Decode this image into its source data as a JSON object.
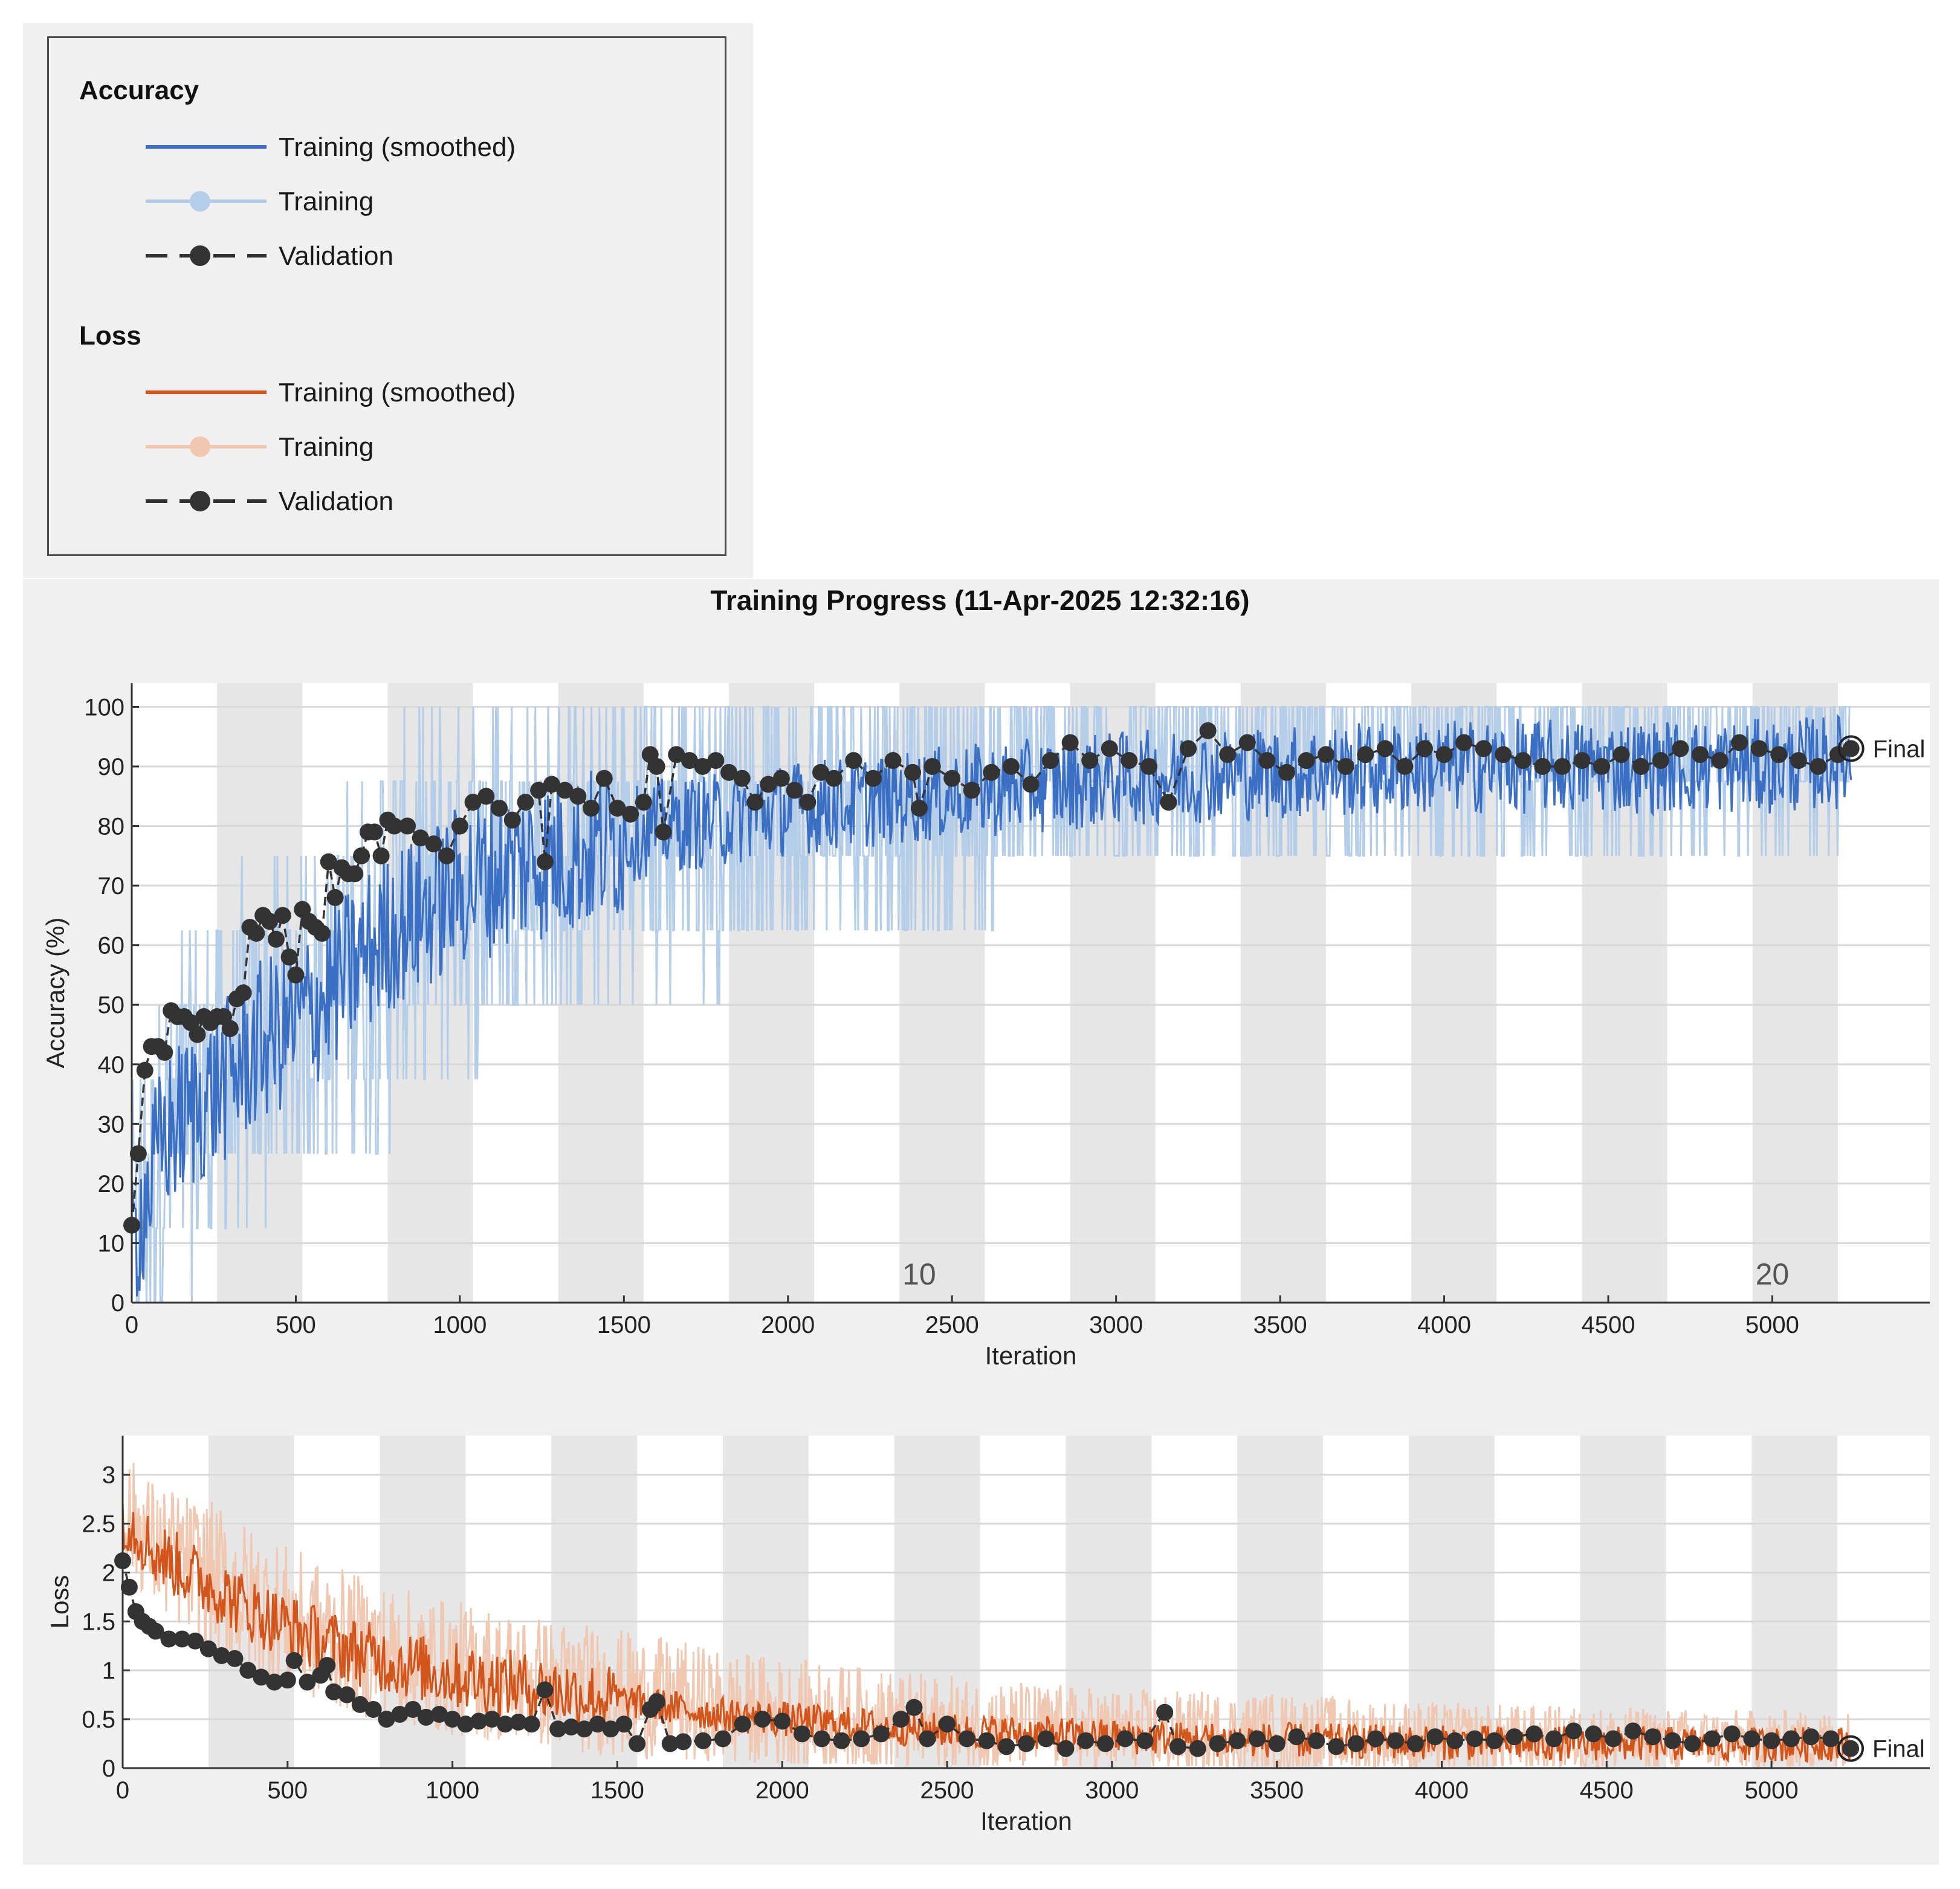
{
  "legend": {
    "accuracy_heading": "Accuracy",
    "loss_heading": "Loss",
    "items_accuracy": [
      {
        "label": "Training (smoothed)",
        "color": "#3a6fc4",
        "style": "line"
      },
      {
        "label": "Training",
        "color": "#b4cde8",
        "style": "line-marker"
      },
      {
        "label": "Validation",
        "color": "#333333",
        "style": "dashed-marker"
      }
    ],
    "items_loss": [
      {
        "label": "Training (smoothed)",
        "color": "#d2551c",
        "style": "line"
      },
      {
        "label": "Training",
        "color": "#f0c7b0",
        "style": "line-marker"
      },
      {
        "label": "Validation",
        "color": "#333333",
        "style": "dashed-marker"
      }
    ]
  },
  "title": "Training Progress (11-Apr-2025 12:32:16)",
  "colors": {
    "acc_smoothed": "#3a6fc4",
    "acc_training": "#b4cde8",
    "loss_smoothed": "#d2551c",
    "loss_training": "#f0c7b0",
    "validation": "#333333",
    "epoch_band": "#e6e6e6",
    "grid": "#d9d9d9"
  },
  "chart_data": [
    {
      "type": "line",
      "name": "accuracy",
      "xlabel": "Iteration",
      "ylabel": "Accuracy (%)",
      "xlim": [
        0,
        5480
      ],
      "ylim": [
        0,
        104
      ],
      "xticks": [
        0,
        500,
        1000,
        1500,
        2000,
        2500,
        3000,
        3500,
        4000,
        4500,
        5000
      ],
      "yticks": [
        0,
        10,
        20,
        30,
        40,
        50,
        60,
        70,
        80,
        90,
        100
      ],
      "grid": true,
      "epoch_length": 260,
      "epoch_labels": [
        {
          "x": 2400,
          "text": "10"
        },
        {
          "x": 5000,
          "text": "20"
        }
      ],
      "final_label": "Final",
      "final_x": 5240,
      "final_value": 93,
      "training_smoothed_key": [
        [
          0,
          10
        ],
        [
          100,
          28
        ],
        [
          200,
          33
        ],
        [
          300,
          38
        ],
        [
          400,
          44
        ],
        [
          500,
          47
        ],
        [
          600,
          52
        ],
        [
          700,
          58
        ],
        [
          800,
          63
        ],
        [
          900,
          66
        ],
        [
          1000,
          70
        ],
        [
          1200,
          74
        ],
        [
          1400,
          76
        ],
        [
          1600,
          80
        ],
        [
          1800,
          81
        ],
        [
          2000,
          83
        ],
        [
          2200,
          84
        ],
        [
          2400,
          85
        ],
        [
          2600,
          86
        ],
        [
          2800,
          87
        ],
        [
          3000,
          88
        ],
        [
          3500,
          89
        ],
        [
          4000,
          90
        ],
        [
          4500,
          90
        ],
        [
          5000,
          90
        ],
        [
          5240,
          91
        ]
      ],
      "training_band": [
        [
          0,
          0,
          50
        ],
        [
          200,
          0,
          75
        ],
        [
          400,
          12,
          75
        ],
        [
          600,
          25,
          88
        ],
        [
          800,
          25,
          100
        ],
        [
          1200,
          38,
          100
        ],
        [
          1600,
          38,
          100
        ],
        [
          2000,
          50,
          100
        ],
        [
          2500,
          50,
          100
        ],
        [
          3000,
          63,
          100
        ],
        [
          3500,
          63,
          100
        ],
        [
          4000,
          63,
          100
        ],
        [
          5240,
          75,
          100
        ]
      ],
      "validation": [
        [
          0,
          13
        ],
        [
          20,
          25
        ],
        [
          40,
          39
        ],
        [
          60,
          43
        ],
        [
          80,
          43
        ],
        [
          100,
          42
        ],
        [
          120,
          49
        ],
        [
          140,
          48
        ],
        [
          160,
          48
        ],
        [
          180,
          47
        ],
        [
          200,
          45
        ],
        [
          220,
          48
        ],
        [
          240,
          47
        ],
        [
          260,
          48
        ],
        [
          280,
          48
        ],
        [
          300,
          46
        ],
        [
          320,
          51
        ],
        [
          340,
          52
        ],
        [
          360,
          63
        ],
        [
          380,
          62
        ],
        [
          400,
          65
        ],
        [
          420,
          64
        ],
        [
          440,
          61
        ],
        [
          460,
          65
        ],
        [
          480,
          58
        ],
        [
          500,
          55
        ],
        [
          520,
          66
        ],
        [
          540,
          64
        ],
        [
          560,
          63
        ],
        [
          580,
          62
        ],
        [
          600,
          74
        ],
        [
          620,
          68
        ],
        [
          640,
          73
        ],
        [
          660,
          72
        ],
        [
          680,
          72
        ],
        [
          700,
          75
        ],
        [
          720,
          79
        ],
        [
          740,
          79
        ],
        [
          760,
          75
        ],
        [
          780,
          81
        ],
        [
          800,
          80
        ],
        [
          840,
          80
        ],
        [
          880,
          78
        ],
        [
          920,
          77
        ],
        [
          960,
          75
        ],
        [
          1000,
          80
        ],
        [
          1040,
          84
        ],
        [
          1080,
          85
        ],
        [
          1120,
          83
        ],
        [
          1160,
          81
        ],
        [
          1200,
          84
        ],
        [
          1240,
          86
        ],
        [
          1260,
          74
        ],
        [
          1280,
          87
        ],
        [
          1320,
          86
        ],
        [
          1360,
          85
        ],
        [
          1400,
          83
        ],
        [
          1440,
          88
        ],
        [
          1480,
          83
        ],
        [
          1520,
          82
        ],
        [
          1560,
          84
        ],
        [
          1580,
          92
        ],
        [
          1600,
          90
        ],
        [
          1620,
          79
        ],
        [
          1660,
          92
        ],
        [
          1700,
          91
        ],
        [
          1740,
          90
        ],
        [
          1780,
          91
        ],
        [
          1820,
          89
        ],
        [
          1860,
          88
        ],
        [
          1900,
          84
        ],
        [
          1940,
          87
        ],
        [
          1980,
          88
        ],
        [
          2020,
          86
        ],
        [
          2060,
          84
        ],
        [
          2100,
          89
        ],
        [
          2140,
          88
        ],
        [
          2200,
          91
        ],
        [
          2260,
          88
        ],
        [
          2320,
          91
        ],
        [
          2380,
          89
        ],
        [
          2400,
          83
        ],
        [
          2440,
          90
        ],
        [
          2500,
          88
        ],
        [
          2560,
          86
        ],
        [
          2620,
          89
        ],
        [
          2680,
          90
        ],
        [
          2740,
          87
        ],
        [
          2800,
          91
        ],
        [
          2860,
          94
        ],
        [
          2920,
          91
        ],
        [
          2980,
          93
        ],
        [
          3040,
          91
        ],
        [
          3100,
          90
        ],
        [
          3160,
          84
        ],
        [
          3220,
          93
        ],
        [
          3280,
          96
        ],
        [
          3340,
          92
        ],
        [
          3400,
          94
        ],
        [
          3460,
          91
        ],
        [
          3520,
          89
        ],
        [
          3580,
          91
        ],
        [
          3640,
          92
        ],
        [
          3700,
          90
        ],
        [
          3760,
          92
        ],
        [
          3820,
          93
        ],
        [
          3880,
          90
        ],
        [
          3940,
          93
        ],
        [
          4000,
          92
        ],
        [
          4060,
          94
        ],
        [
          4120,
          93
        ],
        [
          4180,
          92
        ],
        [
          4240,
          91
        ],
        [
          4300,
          90
        ],
        [
          4360,
          90
        ],
        [
          4420,
          91
        ],
        [
          4480,
          90
        ],
        [
          4540,
          92
        ],
        [
          4600,
          90
        ],
        [
          4660,
          91
        ],
        [
          4720,
          93
        ],
        [
          4780,
          92
        ],
        [
          4840,
          91
        ],
        [
          4900,
          94
        ],
        [
          4960,
          93
        ],
        [
          5020,
          92
        ],
        [
          5080,
          91
        ],
        [
          5140,
          90
        ],
        [
          5200,
          92
        ],
        [
          5240,
          93
        ]
      ]
    },
    {
      "type": "line",
      "name": "loss",
      "xlabel": "Iteration",
      "ylabel": "Loss",
      "xlim": [
        0,
        5480
      ],
      "ylim": [
        0,
        3.4
      ],
      "xticks": [
        0,
        500,
        1000,
        1500,
        2000,
        2500,
        3000,
        3500,
        4000,
        4500,
        5000
      ],
      "yticks": [
        0,
        0.5,
        1,
        1.5,
        2,
        2.5,
        3
      ],
      "grid": true,
      "epoch_length": 260,
      "final_label": "Final",
      "final_x": 5240,
      "final_value": 0.2,
      "training_smoothed_key": [
        [
          0,
          2.6
        ],
        [
          100,
          2.2
        ],
        [
          200,
          2.0
        ],
        [
          300,
          1.8
        ],
        [
          400,
          1.6
        ],
        [
          500,
          1.45
        ],
        [
          600,
          1.3
        ],
        [
          800,
          1.1
        ],
        [
          1000,
          0.95
        ],
        [
          1200,
          0.85
        ],
        [
          1400,
          0.75
        ],
        [
          1600,
          0.65
        ],
        [
          1800,
          0.55
        ],
        [
          2000,
          0.5
        ],
        [
          2400,
          0.4
        ],
        [
          2800,
          0.35
        ],
        [
          3200,
          0.3
        ],
        [
          3600,
          0.28
        ],
        [
          4000,
          0.26
        ],
        [
          4500,
          0.25
        ],
        [
          5000,
          0.24
        ],
        [
          5240,
          0.25
        ]
      ],
      "training_band": [
        [
          0,
          1.5,
          3.2
        ],
        [
          300,
          0.8,
          3.1
        ],
        [
          600,
          0.5,
          2.6
        ],
        [
          1000,
          0.2,
          2.2
        ],
        [
          1500,
          0.1,
          2.0
        ],
        [
          2000,
          0.05,
          1.7
        ],
        [
          2500,
          0.03,
          1.5
        ],
        [
          3000,
          0.02,
          1.3
        ],
        [
          3500,
          0.02,
          1.3
        ],
        [
          4000,
          0.02,
          1.1
        ],
        [
          4500,
          0.02,
          1.0
        ],
        [
          5240,
          0.02,
          0.9
        ]
      ],
      "validation": [
        [
          0,
          2.12
        ],
        [
          20,
          1.85
        ],
        [
          40,
          1.6
        ],
        [
          60,
          1.5
        ],
        [
          80,
          1.45
        ],
        [
          100,
          1.4
        ],
        [
          140,
          1.32
        ],
        [
          180,
          1.32
        ],
        [
          220,
          1.3
        ],
        [
          260,
          1.22
        ],
        [
          300,
          1.15
        ],
        [
          340,
          1.12
        ],
        [
          380,
          1.0
        ],
        [
          420,
          0.93
        ],
        [
          460,
          0.88
        ],
        [
          500,
          0.9
        ],
        [
          520,
          1.1
        ],
        [
          560,
          0.88
        ],
        [
          600,
          0.95
        ],
        [
          620,
          1.05
        ],
        [
          640,
          0.78
        ],
        [
          680,
          0.75
        ],
        [
          720,
          0.65
        ],
        [
          760,
          0.6
        ],
        [
          800,
          0.5
        ],
        [
          840,
          0.55
        ],
        [
          880,
          0.6
        ],
        [
          920,
          0.52
        ],
        [
          960,
          0.55
        ],
        [
          1000,
          0.5
        ],
        [
          1040,
          0.45
        ],
        [
          1080,
          0.48
        ],
        [
          1120,
          0.5
        ],
        [
          1160,
          0.45
        ],
        [
          1200,
          0.47
        ],
        [
          1240,
          0.45
        ],
        [
          1280,
          0.8
        ],
        [
          1320,
          0.4
        ],
        [
          1360,
          0.42
        ],
        [
          1400,
          0.4
        ],
        [
          1440,
          0.45
        ],
        [
          1480,
          0.4
        ],
        [
          1520,
          0.45
        ],
        [
          1560,
          0.25
        ],
        [
          1600,
          0.6
        ],
        [
          1620,
          0.68
        ],
        [
          1660,
          0.25
        ],
        [
          1700,
          0.27
        ],
        [
          1760,
          0.28
        ],
        [
          1820,
          0.3
        ],
        [
          1880,
          0.45
        ],
        [
          1940,
          0.5
        ],
        [
          2000,
          0.48
        ],
        [
          2060,
          0.35
        ],
        [
          2120,
          0.3
        ],
        [
          2180,
          0.28
        ],
        [
          2240,
          0.3
        ],
        [
          2300,
          0.35
        ],
        [
          2360,
          0.5
        ],
        [
          2400,
          0.62
        ],
        [
          2440,
          0.3
        ],
        [
          2500,
          0.45
        ],
        [
          2560,
          0.3
        ],
        [
          2620,
          0.28
        ],
        [
          2680,
          0.22
        ],
        [
          2740,
          0.25
        ],
        [
          2800,
          0.3
        ],
        [
          2860,
          0.2
        ],
        [
          2920,
          0.28
        ],
        [
          2980,
          0.25
        ],
        [
          3040,
          0.3
        ],
        [
          3100,
          0.28
        ],
        [
          3160,
          0.57
        ],
        [
          3200,
          0.22
        ],
        [
          3260,
          0.2
        ],
        [
          3320,
          0.25
        ],
        [
          3380,
          0.28
        ],
        [
          3440,
          0.3
        ],
        [
          3500,
          0.25
        ],
        [
          3560,
          0.32
        ],
        [
          3620,
          0.28
        ],
        [
          3680,
          0.22
        ],
        [
          3740,
          0.25
        ],
        [
          3800,
          0.3
        ],
        [
          3860,
          0.28
        ],
        [
          3920,
          0.25
        ],
        [
          3980,
          0.32
        ],
        [
          4040,
          0.28
        ],
        [
          4100,
          0.3
        ],
        [
          4160,
          0.28
        ],
        [
          4220,
          0.32
        ],
        [
          4280,
          0.35
        ],
        [
          4340,
          0.3
        ],
        [
          4400,
          0.38
        ],
        [
          4460,
          0.35
        ],
        [
          4520,
          0.3
        ],
        [
          4580,
          0.38
        ],
        [
          4640,
          0.32
        ],
        [
          4700,
          0.28
        ],
        [
          4760,
          0.25
        ],
        [
          4820,
          0.3
        ],
        [
          4880,
          0.35
        ],
        [
          4940,
          0.3
        ],
        [
          5000,
          0.28
        ],
        [
          5060,
          0.3
        ],
        [
          5120,
          0.32
        ],
        [
          5180,
          0.3
        ],
        [
          5240,
          0.2
        ]
      ]
    }
  ]
}
